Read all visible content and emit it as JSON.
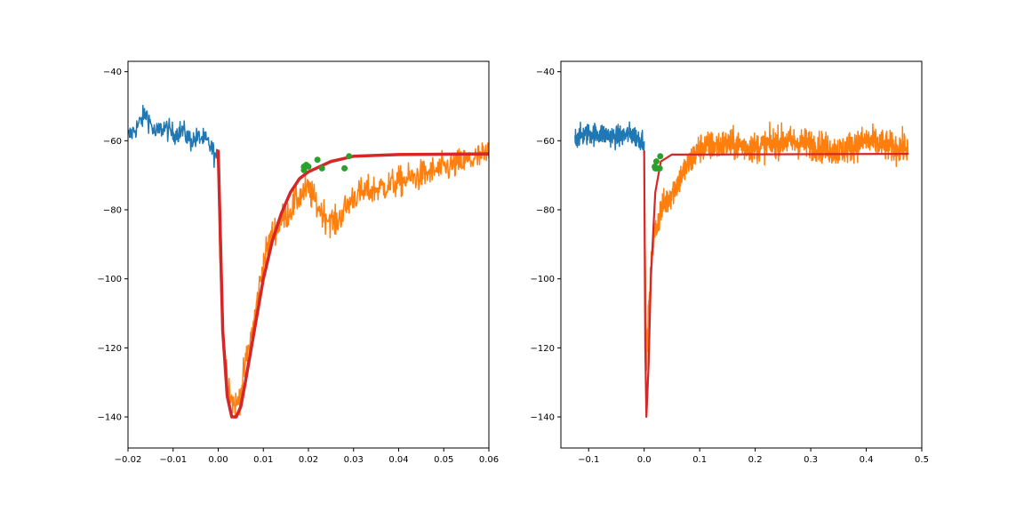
{
  "colors": {
    "pre": "#1f77b4",
    "post": "#ff7f0e",
    "fit": "#d62728",
    "points": "#2ca02c"
  },
  "chart_data": [
    {
      "type": "line",
      "title": "",
      "xlabel": "",
      "ylabel": "",
      "xlim": [
        -0.02,
        0.06
      ],
      "ylim": [
        -149,
        -37
      ],
      "xticks": [
        -0.02,
        -0.01,
        0.0,
        0.01,
        0.02,
        0.03,
        0.04,
        0.05,
        0.06
      ],
      "xtick_labels": [
        "-0.02",
        "-0.01",
        "0.00",
        "0.01",
        "0.02",
        "0.03",
        "0.04",
        "0.05",
        "0.06"
      ],
      "yticks": [
        -40,
        -60,
        -80,
        -100,
        -120,
        -140
      ],
      "ytick_labels": [
        "-40",
        "-60",
        "-80",
        "-100",
        "-120",
        "-140"
      ],
      "grid": false,
      "series": [
        {
          "color_key": "pre",
          "x_range": [
            -0.02,
            0.0
          ],
          "style": "noisy",
          "points": [
            [
              -0.02,
              -59
            ],
            [
              -0.018,
              -56
            ],
            [
              -0.016,
              -52
            ],
            [
              -0.014,
              -58
            ],
            [
              -0.012,
              -56
            ],
            [
              -0.01,
              -58
            ],
            [
              -0.008,
              -57
            ],
            [
              -0.006,
              -60
            ],
            [
              -0.004,
              -59
            ],
            [
              -0.002,
              -61
            ],
            [
              0.0,
              -66
            ]
          ]
        },
        {
          "color_key": "post",
          "x_range": [
            0.0,
            0.06
          ],
          "style": "noisy",
          "points": [
            [
              0.0,
              -66
            ],
            [
              0.0005,
              -100
            ],
            [
              0.001,
              -115
            ],
            [
              0.002,
              -128
            ],
            [
              0.003,
              -135
            ],
            [
              0.004,
              -137
            ],
            [
              0.005,
              -133
            ],
            [
              0.006,
              -125
            ],
            [
              0.008,
              -112
            ],
            [
              0.01,
              -95
            ],
            [
              0.012,
              -87
            ],
            [
              0.014,
              -83
            ],
            [
              0.016,
              -80
            ],
            [
              0.018,
              -76
            ],
            [
              0.02,
              -74
            ],
            [
              0.022,
              -79
            ],
            [
              0.024,
              -82
            ],
            [
              0.026,
              -84
            ],
            [
              0.028,
              -80
            ],
            [
              0.03,
              -76
            ],
            [
              0.035,
              -74
            ],
            [
              0.04,
              -72
            ],
            [
              0.045,
              -70
            ],
            [
              0.05,
              -68
            ],
            [
              0.055,
              -66
            ],
            [
              0.06,
              -64
            ]
          ]
        },
        {
          "color_key": "fit",
          "style": "curve",
          "points": [
            [
              0.0,
              -63
            ],
            [
              0.001,
              -115
            ],
            [
              0.002,
              -134
            ],
            [
              0.003,
              -140
            ],
            [
              0.004,
              -140
            ],
            [
              0.005,
              -137
            ],
            [
              0.006,
              -130
            ],
            [
              0.008,
              -115
            ],
            [
              0.01,
              -100
            ],
            [
              0.012,
              -89
            ],
            [
              0.014,
              -81
            ],
            [
              0.016,
              -75
            ],
            [
              0.018,
              -71
            ],
            [
              0.02,
              -69
            ],
            [
              0.025,
              -66
            ],
            [
              0.03,
              -64.5
            ],
            [
              0.04,
              -64
            ],
            [
              0.06,
              -63.8
            ]
          ]
        }
      ],
      "markers": {
        "color_key": "points",
        "points": [
          [
            0.019,
            -67.5
          ],
          [
            0.0195,
            -67
          ],
          [
            0.02,
            -67.5
          ],
          [
            0.022,
            -65.5
          ],
          [
            0.023,
            -68
          ],
          [
            0.028,
            -68
          ],
          [
            0.029,
            -64.5
          ],
          [
            0.019,
            -68.5
          ]
        ]
      }
    },
    {
      "type": "line",
      "title": "",
      "xlabel": "",
      "ylabel": "",
      "xlim": [
        -0.15,
        0.5
      ],
      "ylim": [
        -149,
        -37
      ],
      "xticks": [
        -0.1,
        0.0,
        0.1,
        0.2,
        0.3,
        0.4,
        0.5
      ],
      "xtick_labels": [
        "-0.1",
        "0.0",
        "0.1",
        "0.2",
        "0.3",
        "0.4",
        "0.5"
      ],
      "yticks": [
        -40,
        -60,
        -80,
        -100,
        -120,
        -140
      ],
      "ytick_labels": [
        "-40",
        "-60",
        "-80",
        "-100",
        "-120",
        "-140"
      ],
      "grid": false,
      "series": [
        {
          "color_key": "pre",
          "x_range": [
            -0.125,
            0.0
          ],
          "style": "noisy",
          "points": [
            [
              -0.125,
              -59
            ],
            [
              -0.1,
              -58
            ],
            [
              -0.075,
              -58
            ],
            [
              -0.05,
              -59
            ],
            [
              -0.025,
              -58
            ],
            [
              0.0,
              -60
            ]
          ]
        },
        {
          "color_key": "post",
          "x_range": [
            0.0,
            0.475
          ],
          "style": "noisy",
          "points": [
            [
              0.0,
              -66
            ],
            [
              0.004,
              -125
            ],
            [
              0.008,
              -110
            ],
            [
              0.015,
              -90
            ],
            [
              0.03,
              -80
            ],
            [
              0.05,
              -75
            ],
            [
              0.075,
              -68
            ],
            [
              0.1,
              -62
            ],
            [
              0.15,
              -61
            ],
            [
              0.2,
              -62
            ],
            [
              0.25,
              -60
            ],
            [
              0.3,
              -61
            ],
            [
              0.35,
              -63
            ],
            [
              0.4,
              -60
            ],
            [
              0.45,
              -62
            ],
            [
              0.475,
              -62
            ]
          ]
        },
        {
          "color_key": "fit",
          "style": "curve",
          "points": [
            [
              0.0,
              -63
            ],
            [
              0.002,
              -120
            ],
            [
              0.004,
              -140
            ],
            [
              0.008,
              -125
            ],
            [
              0.012,
              -100
            ],
            [
              0.02,
              -75
            ],
            [
              0.03,
              -66
            ],
            [
              0.05,
              -64
            ],
            [
              0.475,
              -63.8
            ]
          ]
        }
      ],
      "markers": {
        "color_key": "points",
        "points": [
          [
            0.019,
            -67.5
          ],
          [
            0.02,
            -68
          ],
          [
            0.022,
            -66
          ],
          [
            0.023,
            -68
          ],
          [
            0.028,
            -68
          ],
          [
            0.029,
            -64.5
          ]
        ]
      }
    }
  ]
}
